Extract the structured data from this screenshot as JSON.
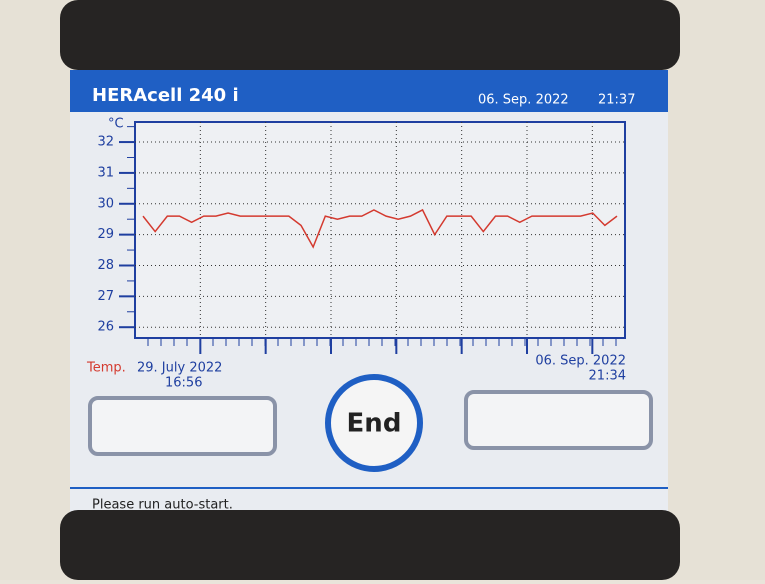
{
  "header": {
    "title": "HERAcell 240 i",
    "date": "06. Sep. 2022",
    "time": "21:37"
  },
  "chart": {
    "unit": "°C",
    "ylim": [
      25.65,
      32.65
    ],
    "yticks": [
      26,
      27,
      28,
      29,
      30,
      31,
      32
    ],
    "series_name": "Temp.",
    "color": "#d43a2f",
    "start_date": "29. July 2022",
    "start_time": "16:56",
    "end_date": "06. Sep. 2022",
    "end_time": "21:34",
    "values": [
      29.6,
      29.1,
      29.6,
      29.6,
      29.4,
      29.6,
      29.6,
      29.7,
      29.6,
      29.6,
      29.6,
      29.6,
      29.6,
      29.3,
      28.6,
      29.6,
      29.5,
      29.6,
      29.6,
      29.8,
      29.6,
      29.5,
      29.6,
      29.8,
      29.0,
      29.6,
      29.6,
      29.6,
      29.1,
      29.6,
      29.6,
      29.4,
      29.6,
      29.6,
      29.6,
      29.6,
      29.6,
      29.7,
      29.3,
      29.6
    ]
  },
  "button": "End",
  "status": "Please run auto-start."
}
